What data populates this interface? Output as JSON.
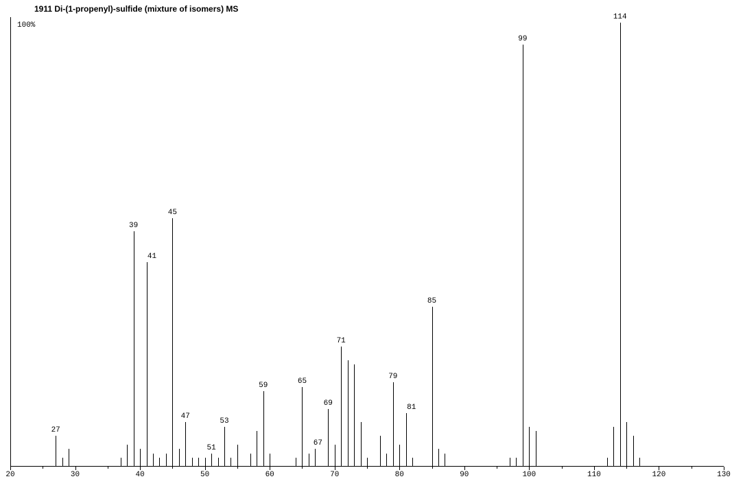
{
  "title": "1911  Di-(1-propenyl)-sulfide  (mixture of isomers)  MS",
  "spectrum": {
    "type": "mass-spectrum",
    "background_color": "#ffffff",
    "axis_color": "#000000",
    "peak_color": "#000000",
    "font_family_labels": "Courier New",
    "label_fontsize": 11,
    "title_fontsize": 12,
    "y_label": "100%",
    "x_axis": {
      "min": 20,
      "max": 130,
      "tick_step": 10,
      "minor_tick_step": 5,
      "labels": [
        "20",
        "30",
        "40",
        "50",
        "60",
        "70",
        "80",
        "90",
        "100",
        "110",
        "120",
        "130"
      ]
    },
    "peaks": [
      {
        "mz": 27,
        "intensity": 7,
        "label": "27"
      },
      {
        "mz": 28,
        "intensity": 2
      },
      {
        "mz": 29,
        "intensity": 4
      },
      {
        "mz": 37,
        "intensity": 2
      },
      {
        "mz": 38,
        "intensity": 5
      },
      {
        "mz": 39,
        "intensity": 53,
        "label": "39"
      },
      {
        "mz": 40,
        "intensity": 4
      },
      {
        "mz": 41,
        "intensity": 46,
        "label": "41"
      },
      {
        "mz": 42,
        "intensity": 3
      },
      {
        "mz": 43,
        "intensity": 2
      },
      {
        "mz": 44,
        "intensity": 3
      },
      {
        "mz": 45,
        "intensity": 56,
        "label": "45"
      },
      {
        "mz": 46,
        "intensity": 4
      },
      {
        "mz": 47,
        "intensity": 10,
        "label": "47"
      },
      {
        "mz": 48,
        "intensity": 2
      },
      {
        "mz": 49,
        "intensity": 2
      },
      {
        "mz": 50,
        "intensity": 2
      },
      {
        "mz": 51,
        "intensity": 3,
        "label": "51"
      },
      {
        "mz": 52,
        "intensity": 2
      },
      {
        "mz": 53,
        "intensity": 9,
        "label": "53"
      },
      {
        "mz": 54,
        "intensity": 2
      },
      {
        "mz": 55,
        "intensity": 5
      },
      {
        "mz": 57,
        "intensity": 3
      },
      {
        "mz": 58,
        "intensity": 8
      },
      {
        "mz": 59,
        "intensity": 17,
        "label": "59"
      },
      {
        "mz": 60,
        "intensity": 3
      },
      {
        "mz": 64,
        "intensity": 2
      },
      {
        "mz": 65,
        "intensity": 18,
        "label": "65"
      },
      {
        "mz": 66,
        "intensity": 3
      },
      {
        "mz": 67,
        "intensity": 4,
        "label": "67"
      },
      {
        "mz": 69,
        "intensity": 13,
        "label": "69"
      },
      {
        "mz": 70,
        "intensity": 5
      },
      {
        "mz": 71,
        "intensity": 27,
        "label": "71"
      },
      {
        "mz": 72,
        "intensity": 24
      },
      {
        "mz": 73,
        "intensity": 23
      },
      {
        "mz": 74,
        "intensity": 10
      },
      {
        "mz": 75,
        "intensity": 2
      },
      {
        "mz": 77,
        "intensity": 7
      },
      {
        "mz": 78,
        "intensity": 3
      },
      {
        "mz": 79,
        "intensity": 19,
        "label": "79"
      },
      {
        "mz": 80,
        "intensity": 5
      },
      {
        "mz": 81,
        "intensity": 12,
        "label": "81"
      },
      {
        "mz": 82,
        "intensity": 2
      },
      {
        "mz": 85,
        "intensity": 36,
        "label": "85"
      },
      {
        "mz": 86,
        "intensity": 4
      },
      {
        "mz": 87,
        "intensity": 3
      },
      {
        "mz": 97,
        "intensity": 2
      },
      {
        "mz": 98,
        "intensity": 2
      },
      {
        "mz": 99,
        "intensity": 95,
        "label": "99"
      },
      {
        "mz": 100,
        "intensity": 9
      },
      {
        "mz": 101,
        "intensity": 8
      },
      {
        "mz": 112,
        "intensity": 2
      },
      {
        "mz": 113,
        "intensity": 9
      },
      {
        "mz": 114,
        "intensity": 100,
        "label": "114"
      },
      {
        "mz": 115,
        "intensity": 10
      },
      {
        "mz": 116,
        "intensity": 7
      },
      {
        "mz": 117,
        "intensity": 2
      }
    ]
  }
}
